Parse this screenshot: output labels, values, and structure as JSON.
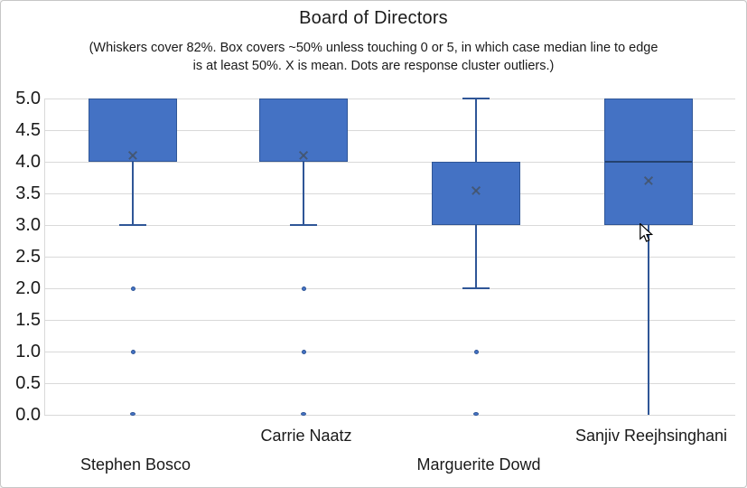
{
  "chart_data": {
    "type": "boxplot",
    "title": "Board of Directors",
    "subtitle": "(Whiskers cover 82%. Box covers ~50% unless touching 0 or 5, in which case median line to edge is at least 50%. X is mean. Dots are response cluster outliers.)",
    "subtitle_lines": [
      "(Whiskers cover 82%. Box covers ~50% unless touching 0 or 5, in which case median line to edge",
      "is at least 50%. X is mean. Dots are response cluster outliers.)"
    ],
    "ylim": [
      0,
      5
    ],
    "ytick_step": 0.5,
    "yticks": [
      "5.0",
      "4.5",
      "4.0",
      "3.5",
      "3.0",
      "2.5",
      "2.0",
      "1.5",
      "1.0",
      "0.5",
      "0.0"
    ],
    "grid": "horizontal",
    "legend": "none",
    "categories": [
      "Stephen Bosco",
      "Carrie Naatz",
      "Marguerite Dowd",
      "Sanjiv Reejhsinghani"
    ],
    "series": [
      {
        "name": "Stephen Bosco",
        "box_bottom": 4,
        "box_top": 5,
        "median": null,
        "mean": 4.1,
        "whisker_low": 3,
        "whisker_low_cap": true,
        "whisker_high": 5,
        "whisker_high_cap": false,
        "outliers": [
          2,
          1,
          0
        ],
        "label_row": 2,
        "wrap": false
      },
      {
        "name": "Carrie Naatz",
        "box_bottom": 4,
        "box_top": 5,
        "median": null,
        "mean": 4.1,
        "whisker_low": 3,
        "whisker_low_cap": true,
        "whisker_high": 5,
        "whisker_high_cap": false,
        "outliers": [
          2,
          1,
          0
        ],
        "label_row": 1,
        "wrap": false
      },
      {
        "name": "Marguerite Dowd",
        "box_bottom": 3,
        "box_top": 4,
        "median": null,
        "mean": 3.55,
        "whisker_low": 2,
        "whisker_low_cap": true,
        "whisker_high": 5,
        "whisker_high_cap": true,
        "outliers": [
          1,
          0
        ],
        "label_row": 2,
        "wrap": false
      },
      {
        "name": "Sanjiv Reejhsinghani",
        "box_bottom": 3,
        "box_top": 5,
        "median": 4,
        "mean": 3.7,
        "whisker_low": 0,
        "whisker_low_cap": false,
        "whisker_high": 5,
        "whisker_high_cap": false,
        "outliers": [],
        "label_row": 1,
        "wrap": true
      }
    ],
    "colors": {
      "box_fill": "#4472c4",
      "box_border": "#2f5697",
      "whisker": "#2f5697",
      "median_line": "#24426e",
      "mean_marker": "#44546a",
      "gridline": "#d9d9d9",
      "text": "#1a1a1a"
    }
  }
}
